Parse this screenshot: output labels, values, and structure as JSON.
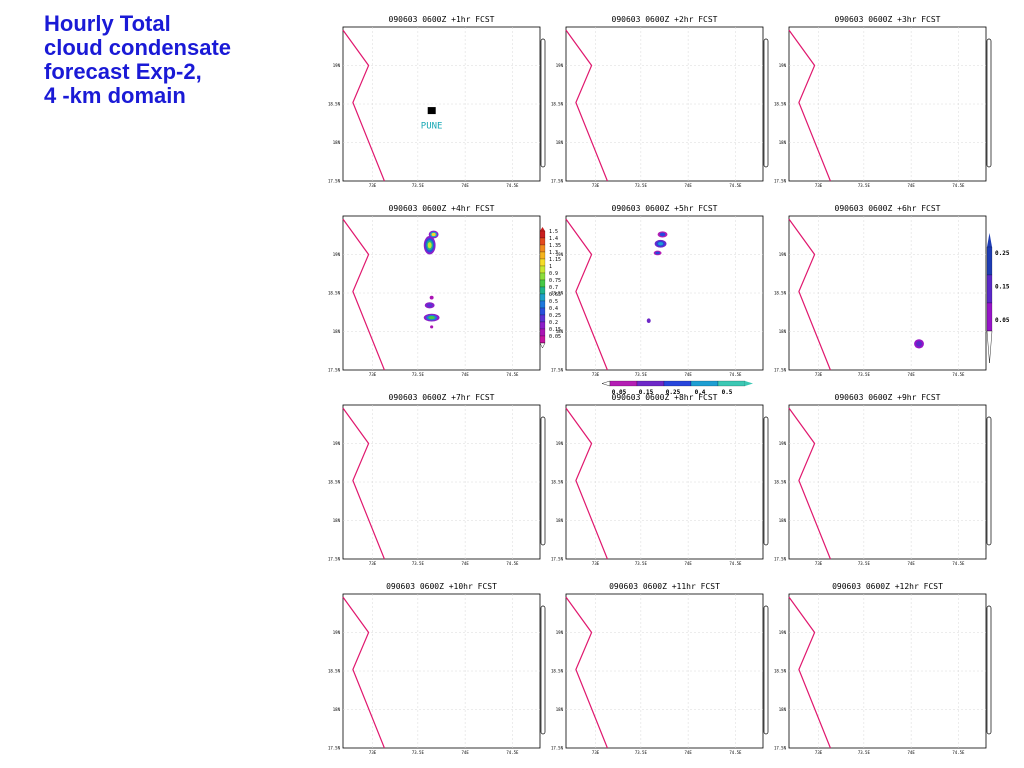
{
  "slide": {
    "title_lines": [
      "Hourly Total",
      "cloud condensate",
      "forecast Exp-2,",
      "4 -km domain"
    ]
  },
  "axes": {
    "y_ticks": [
      "19N",
      "18.5N",
      "18N",
      "17.5N"
    ],
    "x_ticks": [
      "73E",
      "73.5E",
      "74E",
      "74.5E"
    ]
  },
  "panels": [
    {
      "title": "090603  0600Z  +1hr  FCST",
      "city_label": "PUNE"
    },
    {
      "title": "090603  0600Z  +2hr  FCST"
    },
    {
      "title": "090603  0600Z  +3hr  FCST"
    },
    {
      "title": "090603  0600Z  +4hr  FCST"
    },
    {
      "title": "090603  0600Z  +5hr  FCST"
    },
    {
      "title": "090603  0600Z  +6hr  FCST"
    },
    {
      "title": "090603  0600Z  +7hr  FCST"
    },
    {
      "title": "090603  0600Z  +8hr  FCST"
    },
    {
      "title": "090603  0600Z  +9hr  FCST"
    },
    {
      "title": "090603  0600Z  +10hr  FCST"
    },
    {
      "title": "090603  0600Z  +11hr  FCST"
    },
    {
      "title": "090603  0600Z  +12hr  FCST"
    }
  ],
  "colorbars": {
    "panel4_vertical": {
      "labels": [
        "1.5",
        "1.4",
        "1.35",
        "1.3",
        "1.15",
        "1",
        "0.9",
        "0.75",
        "0.7",
        "0.65",
        "0.5",
        "0.4",
        "0.25",
        "0.2",
        "0.15",
        "0.05"
      ],
      "colors": [
        "#c81e1e",
        "#e34a1e",
        "#f08a1e",
        "#f5b41e",
        "#f5dc28",
        "#c8e632",
        "#8cdc3c",
        "#46c846",
        "#1eb48c",
        "#1ea0c8",
        "#1e78dc",
        "#2850dc",
        "#5a32d2",
        "#8c1ec8",
        "#aa14b4",
        "#c814a0"
      ]
    },
    "panel5_horizontal": {
      "labels": [
        "0.05",
        "0.15",
        "0.25",
        "0.4",
        "0.5"
      ],
      "colors": [
        "#b41eb4",
        "#6e28c8",
        "#2846dc",
        "#1e9ed2",
        "#3cc8b4"
      ]
    },
    "panel6_vertical": {
      "labels": [
        "0.25",
        "0.15",
        "0.05"
      ],
      "colors": [
        "#1e3cb4",
        "#5a28c8",
        "#9614c8"
      ]
    }
  }
}
